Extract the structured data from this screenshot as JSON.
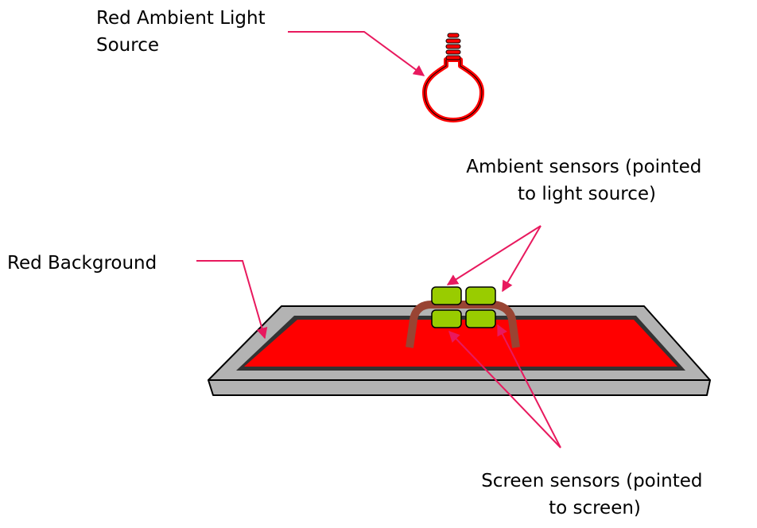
{
  "labels": {
    "light_source": [
      "Red Ambient Light",
      "Source"
    ],
    "background": "Red Background",
    "ambient_sensors": [
      "Ambient sensors (pointed",
      "to light source)"
    ],
    "screen_sensors": [
      "Screen sensors (pointed",
      "to screen)"
    ]
  },
  "colors": {
    "screen_fill": "#ff0000",
    "bezel": "#b3b3b3",
    "bezel_inner": "#333333",
    "bulb": "#ff0000",
    "sensor": "#99cc00",
    "bracket": "#994433",
    "arrow": "#e8195e"
  },
  "icons": {
    "bulb": "light-bulb-icon",
    "sensor": "sensor-block"
  }
}
